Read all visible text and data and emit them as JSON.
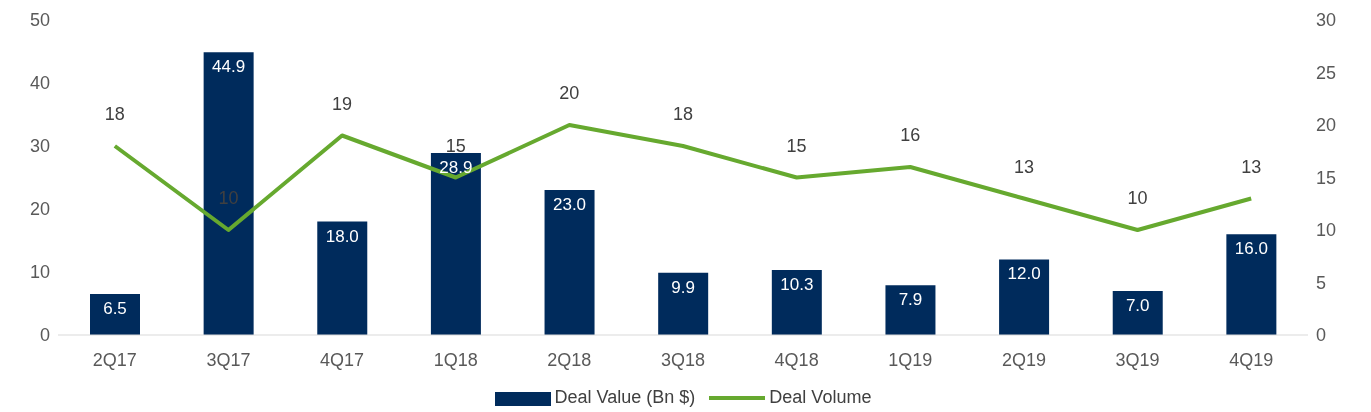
{
  "chart_data": {
    "type": "bar",
    "categories": [
      "2Q17",
      "3Q17",
      "4Q17",
      "1Q18",
      "2Q18",
      "3Q18",
      "4Q18",
      "1Q19",
      "2Q19",
      "3Q19",
      "4Q19"
    ],
    "series": [
      {
        "name": "Deal Value (Bn $)",
        "color": "#002b5c",
        "values": [
          6.5,
          44.9,
          18.0,
          28.9,
          23.0,
          9.9,
          10.3,
          7.9,
          12.0,
          7.0,
          16.0
        ],
        "value_labels": [
          "6.5",
          "44.9",
          "18.0",
          "28.9",
          "23.0",
          "9.9",
          "10.3",
          "7.9",
          "12.0",
          "7.0",
          "16.0"
        ]
      },
      {
        "name": "Deal Volume",
        "type": "line",
        "axis": "y2",
        "color": "#66a92f",
        "values": [
          18,
          10,
          19,
          15,
          20,
          18,
          15,
          16,
          13,
          10,
          13
        ],
        "value_labels": [
          "18",
          "10",
          "19",
          "15",
          "20",
          "18",
          "15",
          "16",
          "13",
          "10",
          "13"
        ]
      }
    ],
    "ylim": [
      0,
      50
    ],
    "yticks": [
      0,
      10,
      20,
      30,
      40,
      50
    ],
    "y2lim": [
      0,
      30
    ],
    "y2ticks": [
      0,
      5,
      10,
      15,
      20,
      25,
      30
    ],
    "grid": false,
    "legend": "bottom",
    "marker": "none"
  }
}
